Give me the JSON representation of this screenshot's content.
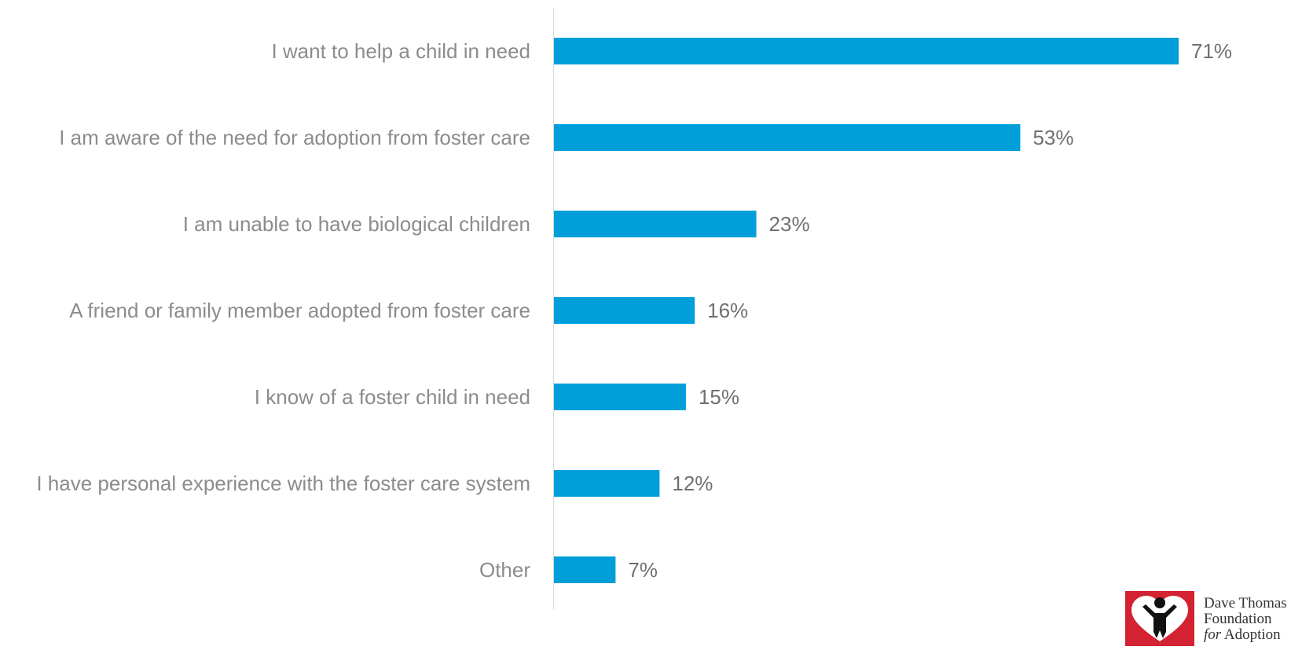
{
  "chart_data": {
    "type": "bar",
    "orientation": "horizontal",
    "categories": [
      "I want to help a child in need",
      "I am aware of the need for adoption from foster care",
      "I am unable to have biological children",
      "A friend or family member adopted from foster care",
      "I know of a foster child in need",
      "I have personal experience with the foster care system",
      "Other"
    ],
    "values": [
      71,
      53,
      23,
      16,
      15,
      12,
      7
    ],
    "value_labels": [
      "71%",
      "53%",
      "23%",
      "16%",
      "15%",
      "12%",
      "7%"
    ],
    "xlim": [
      0,
      71
    ],
    "grid": false,
    "bar_color": "#009fda",
    "axis_color": "#d9d9d9"
  },
  "logo": {
    "line1": "Dave Thomas",
    "line2": "Foundation",
    "line3_italic": "for",
    "line3_rest": "Adoption",
    "mark_color": "#d32232"
  }
}
